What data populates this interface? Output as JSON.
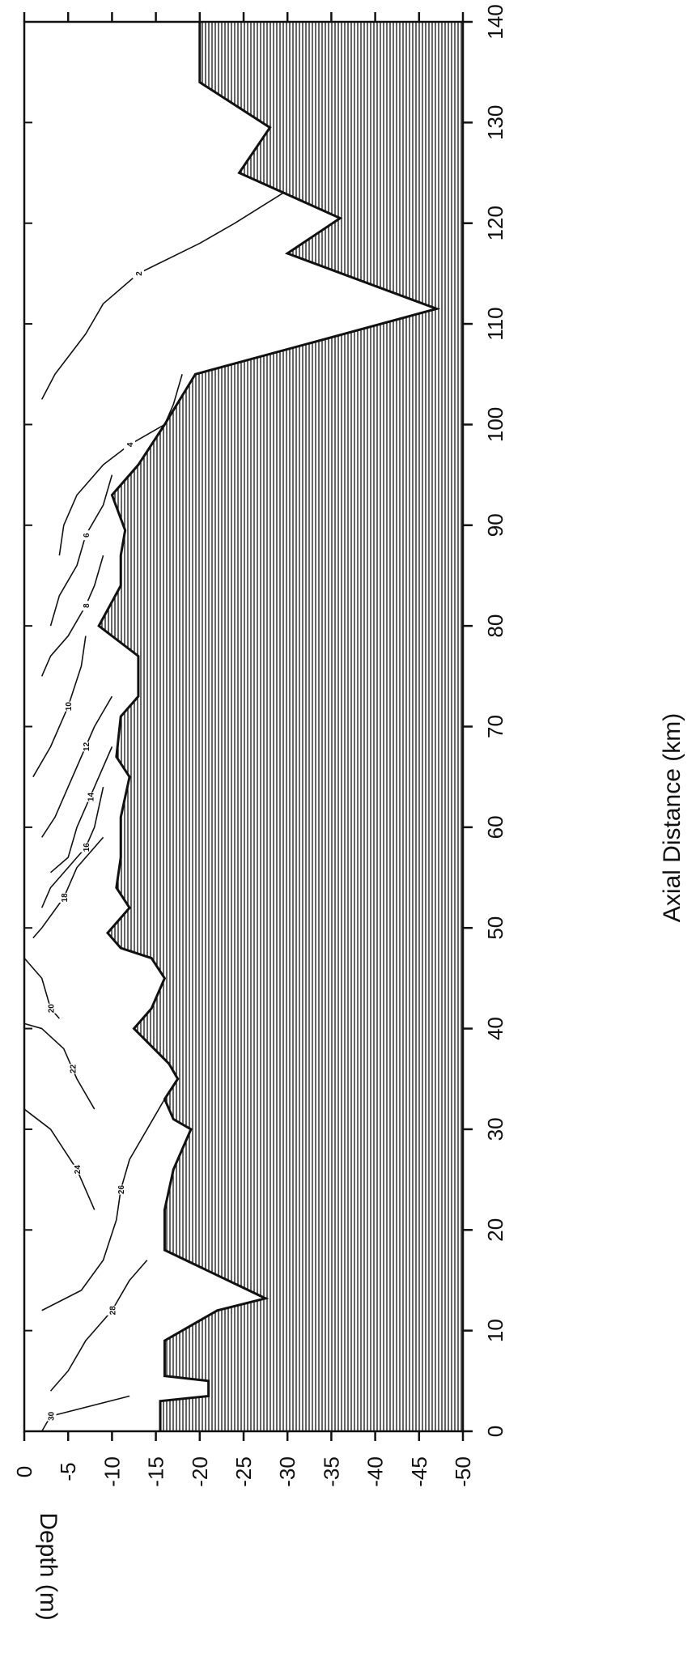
{
  "chart_data": {
    "type": "contour",
    "rotation": "rotated 90 degrees counter-clockwise",
    "xlabel": "Axial Distance (km)",
    "ylabel": "Depth (m)",
    "xlim": [
      0,
      140
    ],
    "ylim": [
      -50,
      0
    ],
    "x_ticks": [
      "0",
      "10",
      "20",
      "30",
      "40",
      "50",
      "60",
      "70",
      "80",
      "90",
      "100",
      "110",
      "120",
      "130",
      "140"
    ],
    "y_ticks": [
      "0",
      "-5",
      "-10",
      "-15",
      "-20",
      "-25",
      "-30",
      "-35",
      "-40",
      "-45",
      "-50"
    ],
    "bottom_profile": {
      "x": [
        0,
        3,
        3.5,
        5,
        5.5,
        9,
        12,
        13.2,
        18,
        19,
        22,
        26,
        30,
        31,
        33,
        35,
        36.5,
        40,
        42,
        45,
        47,
        48,
        49.5,
        52,
        54,
        57,
        61,
        65,
        67,
        71,
        73,
        77,
        80,
        84,
        87,
        89.5,
        93,
        96,
        100,
        105,
        111.5,
        117,
        120.5,
        125,
        129.5,
        134,
        140
      ],
      "y": [
        -15.5,
        -15.5,
        -21,
        -21,
        -16,
        -16,
        -22,
        -27.5,
        -16,
        -16,
        -16,
        -17,
        -19,
        -17,
        -16,
        -17.5,
        -16.5,
        -12.5,
        -14.5,
        -16,
        -14.5,
        -11,
        -9.5,
        -12,
        -10.5,
        -11,
        -11,
        -12,
        -10.5,
        -11,
        -13,
        -13,
        -8.5,
        -11,
        -11,
        -11.5,
        -10,
        -13,
        -16,
        -19.5,
        -47,
        -30,
        -36,
        -24.5,
        -28,
        -20,
        -20
      ]
    },
    "contours": [
      {
        "level": "2",
        "x": [
          102.5,
          105,
          109,
          112,
          115,
          118,
          120,
          123
        ],
        "y": [
          -2,
          -3.5,
          -7,
          -9,
          -13,
          -20,
          -24,
          -29.5
        ]
      },
      {
        "level": "4",
        "x": [
          87,
          90,
          93,
          96,
          98,
          100,
          102,
          105
        ],
        "y": [
          -4,
          -4.5,
          -6,
          -9,
          -12,
          -16,
          -17,
          -18
        ]
      },
      {
        "level": "6",
        "x": [
          80,
          83,
          86,
          89,
          92,
          95
        ],
        "y": [
          -3,
          -4,
          -6,
          -7,
          -9,
          -10
        ]
      },
      {
        "level": "8",
        "x": [
          75,
          77,
          79,
          82,
          84,
          87
        ],
        "y": [
          -2,
          -3,
          -5,
          -7,
          -8,
          -9
        ]
      },
      {
        "level": "10",
        "x": [
          65,
          68,
          72,
          76,
          79
        ],
        "y": [
          -1,
          -3,
          -5,
          -6.5,
          -7
        ]
      },
      {
        "level": "12",
        "x": [
          59,
          61,
          64,
          68,
          70,
          73
        ],
        "y": [
          -2,
          -3.5,
          -5,
          -7,
          -8,
          -10
        ]
      },
      {
        "level": "14",
        "x": [
          55.5,
          57,
          60,
          63,
          66,
          68
        ],
        "y": [
          -3,
          -5,
          -6,
          -7.5,
          -9,
          -10
        ]
      },
      {
        "level": "16",
        "x": [
          52,
          54,
          56,
          58,
          60,
          64
        ],
        "y": [
          -2,
          -3,
          -5,
          -7,
          -8,
          -9
        ]
      },
      {
        "level": "18",
        "x": [
          49,
          50,
          53,
          56,
          59
        ],
        "y": [
          -1,
          -2,
          -4.5,
          -6,
          -9
        ]
      },
      {
        "level": "20",
        "x": [
          47,
          45,
          42,
          41
        ],
        "y": [
          0,
          -2,
          -3,
          -4
        ]
      },
      {
        "level": "22",
        "x": [
          40.5,
          40,
          38,
          36,
          35,
          32
        ],
        "y": [
          0,
          -2,
          -4.5,
          -5.5,
          -6,
          -8
        ]
      },
      {
        "level": "24",
        "x": [
          32,
          30,
          26,
          24,
          22
        ],
        "y": [
          0,
          -3,
          -6,
          -7,
          -8
        ]
      },
      {
        "level": "26",
        "x": [
          12,
          14,
          17,
          21,
          24,
          27,
          30,
          33
        ],
        "y": [
          -2,
          -6.5,
          -9,
          -10.5,
          -11,
          -12,
          -14,
          -16
        ]
      },
      {
        "level": "28",
        "x": [
          4,
          6,
          9,
          12,
          15,
          17
        ],
        "y": [
          -3,
          -5,
          -7,
          -10,
          -12,
          -14
        ]
      },
      {
        "level": "30",
        "x": [
          0,
          1.5,
          3.5
        ],
        "y": [
          -2,
          -3,
          -12
        ]
      }
    ]
  }
}
